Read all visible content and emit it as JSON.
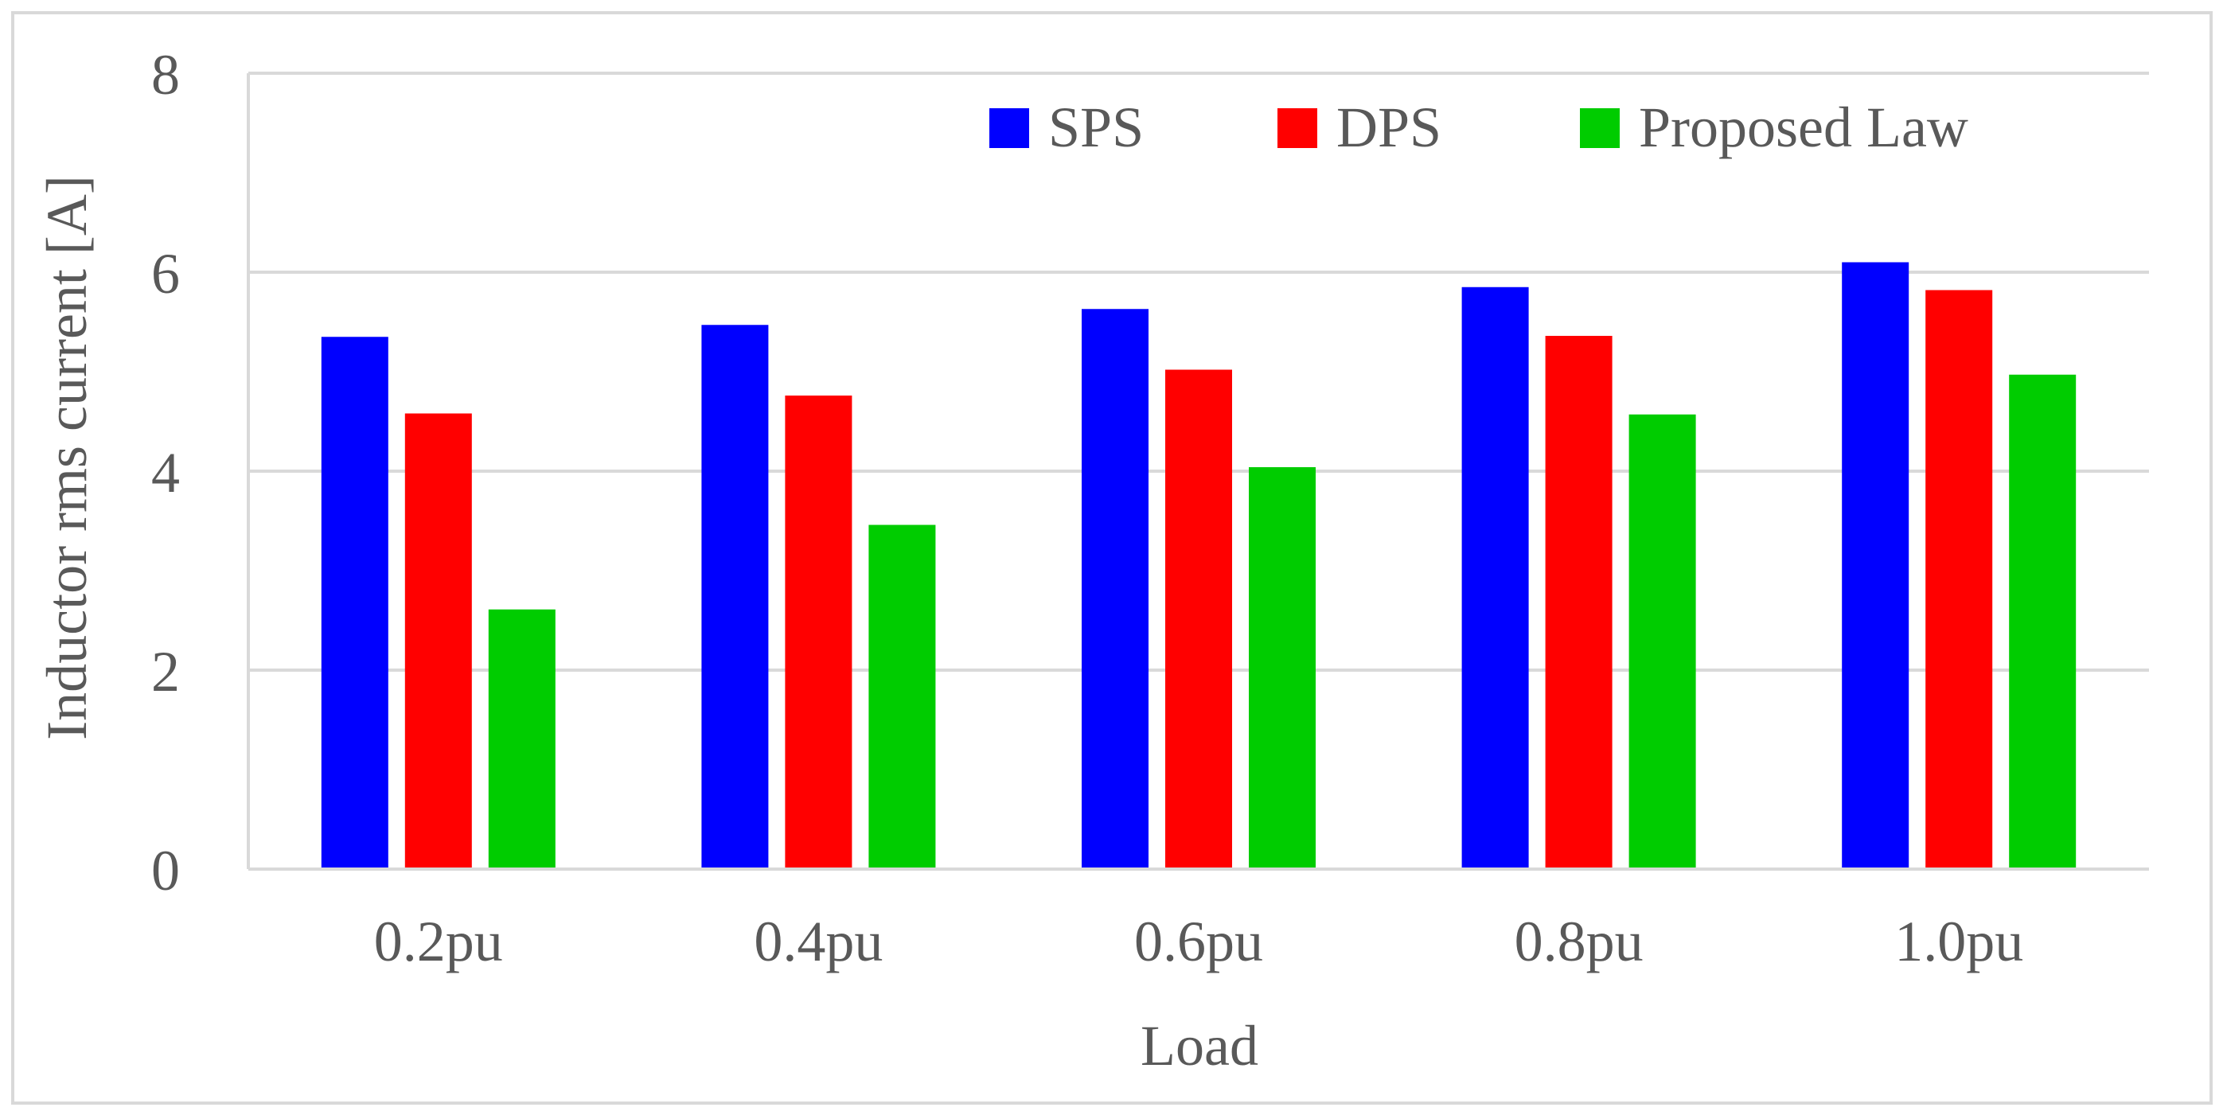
{
  "chart_data": {
    "type": "bar",
    "title": "",
    "xlabel": "Load",
    "ylabel": "Inductor rms current [A]",
    "categories": [
      "0.2pu",
      "0.4pu",
      "0.6pu",
      "0.8pu",
      "1.0pu"
    ],
    "series": [
      {
        "name": "SPS",
        "color": "#0000FF",
        "values": [
          5.35,
          5.47,
          5.63,
          5.85,
          6.1
        ]
      },
      {
        "name": "DPS",
        "color": "#FF0000",
        "values": [
          4.58,
          4.76,
          5.02,
          5.36,
          5.82
        ]
      },
      {
        "name": "Proposed Law",
        "color": "#00CC00",
        "values": [
          2.61,
          3.46,
          4.04,
          4.57,
          4.97
        ]
      }
    ],
    "ylim": [
      0,
      8
    ],
    "yticks": [
      0,
      2,
      4,
      6,
      8
    ],
    "grid": true,
    "legend_position": "top-right"
  }
}
